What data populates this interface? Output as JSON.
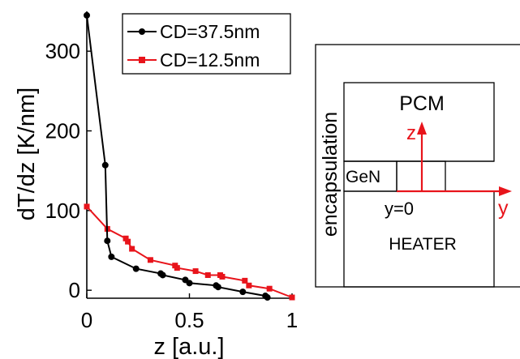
{
  "chart_data": {
    "type": "line",
    "xlabel": "z [a.u.]",
    "ylabel": "dT/dz [K/nm]",
    "xlim": [
      0,
      1
    ],
    "ylim": [
      -10,
      350
    ],
    "xticks": [
      0,
      0.5,
      1
    ],
    "xtick_labels": [
      "0",
      "0.5",
      "1"
    ],
    "yticks": [
      0,
      100,
      200,
      300
    ],
    "ytick_labels": [
      "0",
      "100",
      "200",
      "300"
    ],
    "legend_position": "top-right",
    "series": [
      {
        "name": "CD=37.5nm",
        "color": "#000000",
        "marker": "circle",
        "x": [
          0,
          0.09,
          0.1,
          0.12,
          0.24,
          0.36,
          0.37,
          0.48,
          0.5,
          0.63,
          0.64,
          0.76,
          0.87,
          0.88
        ],
        "y": [
          345,
          157,
          62,
          42,
          27,
          21,
          19,
          13,
          9,
          6,
          4,
          -2,
          -7,
          -9
        ]
      },
      {
        "name": "CD=12.5nm",
        "color": "#e8141b",
        "marker": "square",
        "x": [
          0,
          0.1,
          0.19,
          0.2,
          0.22,
          0.31,
          0.43,
          0.44,
          0.53,
          0.59,
          0.65,
          0.66,
          0.77,
          0.79,
          0.89,
          1.0
        ],
        "y": [
          105,
          77,
          65,
          61,
          52,
          38,
          31,
          28,
          24,
          19,
          19,
          17,
          12,
          6,
          2,
          -9
        ]
      }
    ]
  },
  "diagram": {
    "labels": {
      "pcm": "PCM",
      "encapsulation": "encapsulation",
      "gen": "GeN",
      "heater": "HEATER",
      "z_axis": "z",
      "y_axis": "y",
      "y_zero": "y=0"
    },
    "arrow_color": "#e8141b"
  }
}
